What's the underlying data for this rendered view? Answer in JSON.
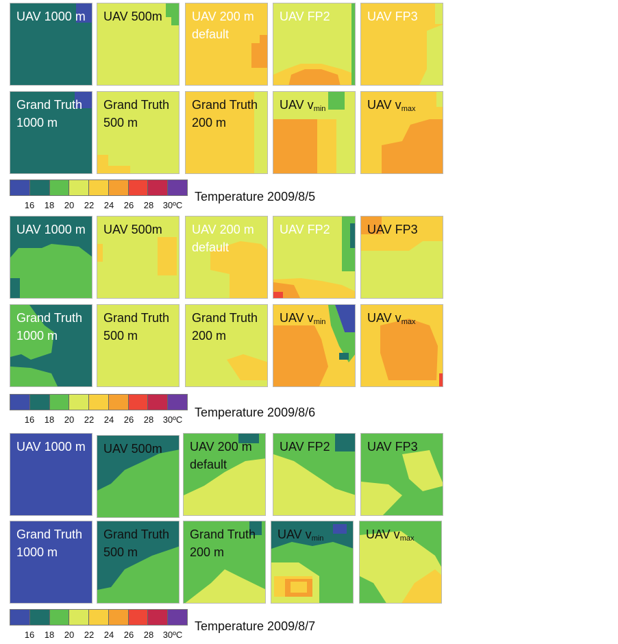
{
  "colors": {
    "c16": "#3d4ea8",
    "c18": "#1f6f6a",
    "c20": "#5fbf4f",
    "c22": "#dbe95b",
    "c24": "#f8cf3f",
    "c26": "#f5a031",
    "c28": "#ee4637",
    "c30": "#c3294b",
    "c32": "#6b3ca0"
  },
  "legend": {
    "ticks": [
      "16",
      "18",
      "20",
      "22",
      "24",
      "26",
      "28",
      "30ºC"
    ]
  },
  "sections": [
    {
      "caption": "Temperature 2009/8/5",
      "rows": [
        [
          {
            "title": "UAV 1000 m",
            "title_color": "white"
          },
          {
            "title": "UAV  500m",
            "title_color": "black"
          },
          {
            "title": "UAV  200 m",
            "subtitle": "default",
            "title_color": "white"
          },
          {
            "title": "UAV FP2",
            "title_color": "white"
          },
          {
            "title": "UAV FP3",
            "title_color": "white"
          }
        ],
        [
          {
            "title": "Grand Truth",
            "subtitle": "1000 m",
            "title_color": "white"
          },
          {
            "title": "Grand Truth",
            "subtitle": " 500 m",
            "title_color": "black"
          },
          {
            "title": "Grand Truth",
            "subtitle": "200 m",
            "title_color": "black"
          },
          {
            "title": "UAV v",
            "sub": "min",
            "title_color": "black"
          },
          {
            "title": "UAV v",
            "sub": "max",
            "title_color": "black"
          }
        ]
      ]
    },
    {
      "caption": "Temperature 2009/8/6",
      "rows": [
        [
          {
            "title": "UAV 1000 m",
            "title_color": "white"
          },
          {
            "title": "UAV  500m",
            "title_color": "black"
          },
          {
            "title": "UAV  200 m",
            "subtitle": "default",
            "title_color": "white"
          },
          {
            "title": "UAV FP2",
            "title_color": "white"
          },
          {
            "title": "UAV FP3",
            "title_color": "black"
          }
        ],
        [
          {
            "title": "Grand Truth",
            "subtitle": "1000 m",
            "title_color": "white"
          },
          {
            "title": "Grand Truth",
            "subtitle": " 500 m",
            "title_color": "black"
          },
          {
            "title": "Grand Truth",
            "subtitle": "200 m",
            "title_color": "black"
          },
          {
            "title": "UAV v",
            "sub": "min",
            "title_color": "black"
          },
          {
            "title": "UAV v",
            "sub": "max",
            "title_color": "black"
          }
        ]
      ]
    },
    {
      "caption": "Temperature 2009/8/7",
      "rows": [
        [
          {
            "title": "UAV 1000 m",
            "title_color": "white"
          },
          {
            "title": "UAV  500m",
            "title_color": "black"
          },
          {
            "title": "UAV  200 m",
            "subtitle": "default",
            "title_color": "black"
          },
          {
            "title": "UAV FP2",
            "title_color": "black"
          },
          {
            "title": "UAV FP3",
            "title_color": "black"
          }
        ],
        [
          {
            "title": "Grand Truth",
            "subtitle": "1000 m",
            "title_color": "white"
          },
          {
            "title": "Grand Truth",
            "subtitle": " 500 m",
            "title_color": "black"
          },
          {
            "title": "Grand Truth",
            "subtitle": "200 m",
            "title_color": "black"
          },
          {
            "title": "UAV v",
            "sub": "min",
            "title_color": "black"
          },
          {
            "title": "UAV v",
            "sub": "max",
            "title_color": "black"
          }
        ]
      ]
    }
  ]
}
